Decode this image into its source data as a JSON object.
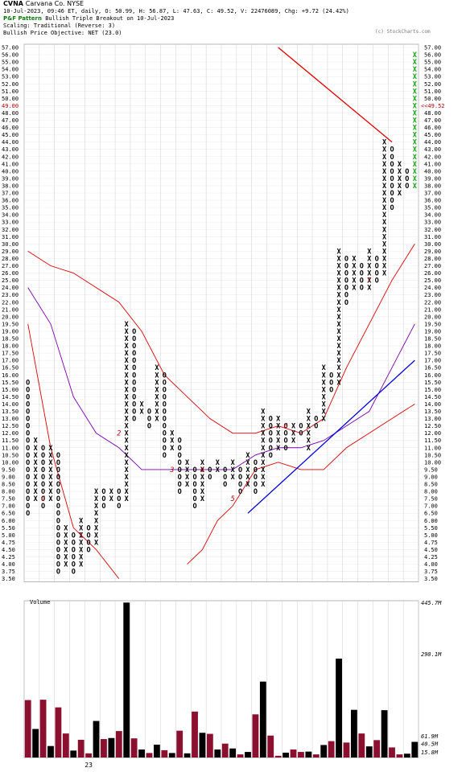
{
  "header": {
    "symbol": "CVNA",
    "company": "Carvana Co.  NYSE",
    "quote_line": "10-Jul-2023, 09:46 ET, daily, O: 50.99, H: 56.87, L: 47.63, C: 49.52, V: 22476089, Chg: +9.72 (24.42%)",
    "pnf_label": "P&F Pattern",
    "pnf_text": "Bullish Triple Breakout on 10-Jul-2023",
    "scaling": "Scaling: Traditional (Reverse: 3)",
    "bullish_objective": "Bullish Price Objective: NET (23.0)",
    "watermark": "(c) StockCharts.com"
  },
  "colors": {
    "x_mark": "#000000",
    "o_mark": "#000000",
    "latest_x": "#10a010",
    "bollinger": "#dd0000",
    "sma": "#7a00b0",
    "bullish_support": "#0000dd",
    "bearish_resistance": "#dd0000",
    "month_label": "#b00000",
    "volume_up": "#8b1030",
    "volume_down": "#000000",
    "current_price": "#b00000"
  },
  "price_axis": {
    "ticks": [
      "57.00",
      "56.00",
      "55.00",
      "54.00",
      "53.00",
      "52.00",
      "51.00",
      "50.00",
      "49.00",
      "48.00",
      "47.00",
      "46.00",
      "45.00",
      "44.00",
      "43.00",
      "42.00",
      "41.00",
      "40.00",
      "39.00",
      "38.00",
      "37.00",
      "36.00",
      "35.00",
      "34.00",
      "33.00",
      "32.00",
      "31.00",
      "30.00",
      "29.00",
      "28.00",
      "27.00",
      "26.00",
      "25.00",
      "24.00",
      "23.00",
      "22.00",
      "21.00",
      "20.00",
      "19.50",
      "19.00",
      "18.50",
      "18.00",
      "17.50",
      "17.00",
      "16.50",
      "16.00",
      "15.50",
      "15.00",
      "14.50",
      "14.00",
      "13.50",
      "13.00",
      "12.50",
      "12.00",
      "11.50",
      "11.00",
      "10.50",
      "10.00",
      "9.50",
      "9.00",
      "8.50",
      "8.00",
      "7.50",
      "7.00",
      "6.50",
      "6.00",
      "5.50",
      "5.00",
      "4.75",
      "4.50",
      "4.25",
      "4.00",
      "3.75",
      "3.50"
    ],
    "current_price_label": "49.00",
    "current_price_marker": "<<49.52"
  },
  "volume_axis": {
    "title": "Volume",
    "ticks": [
      "445.7M",
      "298.1M",
      "61.9M",
      "40.5M",
      "15.8M"
    ]
  },
  "x_axis_label": "23",
  "month_markers": [
    "1",
    "2",
    "3",
    "4",
    "5",
    "6",
    "7",
    "C"
  ],
  "chart_data": {
    "type": "point-and-figure",
    "box_scale": "traditional",
    "reversal": 3,
    "columns": [
      {
        "type": "O",
        "from": "6.50",
        "to": "15.50"
      },
      {
        "type": "X",
        "from": "7.50",
        "to": "11.50"
      },
      {
        "type": "O",
        "from": "7.00",
        "to": "11.00"
      },
      {
        "type": "X",
        "from": "7.50",
        "to": "11.00"
      },
      {
        "type": "O",
        "from": "3.75",
        "to": "10.50"
      },
      {
        "type": "X",
        "from": "4.00",
        "to": "5.50"
      },
      {
        "type": "O",
        "from": "3.75",
        "to": "5.00"
      },
      {
        "type": "X",
        "from": "4.00",
        "to": "6.00"
      },
      {
        "type": "O",
        "from": "4.50",
        "to": "5.50"
      },
      {
        "type": "X",
        "from": "4.75",
        "to": "8.00"
      },
      {
        "type": "O",
        "from": "7.00",
        "to": "8.00"
      },
      {
        "type": "X",
        "from": "7.50",
        "to": "8.00"
      },
      {
        "type": "O",
        "from": "7.00",
        "to": "8.00"
      },
      {
        "type": "X",
        "from": "7.50",
        "to": "19.50"
      },
      {
        "type": "O",
        "from": "13.00",
        "to": "19.00"
      },
      {
        "type": "X",
        "from": "13.50",
        "to": "14.00"
      },
      {
        "type": "O",
        "from": "12.50",
        "to": "13.50"
      },
      {
        "type": "X",
        "from": "13.00",
        "to": "16.50"
      },
      {
        "type": "O",
        "from": "10.50",
        "to": "16.00"
      },
      {
        "type": "X",
        "from": "11.00",
        "to": "12.00"
      },
      {
        "type": "O",
        "from": "8.00",
        "to": "11.50"
      },
      {
        "type": "X",
        "from": "8.50",
        "to": "10.00"
      },
      {
        "type": "O",
        "from": "7.00",
        "to": "9.50"
      },
      {
        "type": "X",
        "from": "7.50",
        "to": "10.00"
      },
      {
        "type": "O",
        "from": "9.00",
        "to": "9.50"
      },
      {
        "type": "X",
        "from": "9.50",
        "to": "10.00"
      },
      {
        "type": "O",
        "from": "8.50",
        "to": "9.50"
      },
      {
        "type": "X",
        "from": "9.00",
        "to": "10.00"
      },
      {
        "type": "O",
        "from": "8.00",
        "to": "9.50"
      },
      {
        "type": "X",
        "from": "8.50",
        "to": "10.50"
      },
      {
        "type": "O",
        "from": "8.00",
        "to": "10.00"
      },
      {
        "type": "X",
        "from": "8.50",
        "to": "13.50"
      },
      {
        "type": "O",
        "from": "10.50",
        "to": "13.00"
      },
      {
        "type": "X",
        "from": "11.00",
        "to": "13.00"
      },
      {
        "type": "O",
        "from": "11.00",
        "to": "12.50"
      },
      {
        "type": "X",
        "from": "11.50",
        "to": "12.50"
      },
      {
        "type": "O",
        "from": "12.00",
        "to": "12.50"
      },
      {
        "type": "X",
        "from": "11.00",
        "to": "13.50"
      },
      {
        "type": "O",
        "from": "12.50",
        "to": "13.00"
      },
      {
        "type": "X",
        "from": "13.00",
        "to": "16.50"
      },
      {
        "type": "O",
        "from": "15.00",
        "to": "16.00"
      },
      {
        "type": "X",
        "from": "15.50",
        "to": "29.00"
      },
      {
        "type": "O",
        "from": "22.00",
        "to": "28.00"
      },
      {
        "type": "X",
        "from": "24.00",
        "to": "28.00"
      },
      {
        "type": "O",
        "from": "24.00",
        "to": "27.00"
      },
      {
        "type": "X",
        "from": "24.00",
        "to": "29.00"
      },
      {
        "type": "O",
        "from": "25.00",
        "to": "28.00"
      },
      {
        "type": "X",
        "from": "26.00",
        "to": "44.00"
      },
      {
        "type": "O",
        "from": "35.00",
        "to": "43.00"
      },
      {
        "type": "X",
        "from": "37.00",
        "to": "41.00"
      },
      {
        "type": "O",
        "from": "38.00",
        "to": "40.00"
      },
      {
        "type": "X",
        "from": "38.00",
        "to": "56.00"
      }
    ],
    "volume": [
      {
        "dir": "up",
        "value": 165
      },
      {
        "dir": "down",
        "value": 82
      },
      {
        "dir": "up",
        "value": 166
      },
      {
        "dir": "down",
        "value": 33
      },
      {
        "dir": "up",
        "value": 144
      },
      {
        "dir": "up",
        "value": 69
      },
      {
        "dir": "down",
        "value": 20
      },
      {
        "dir": "up",
        "value": 51
      },
      {
        "dir": "up",
        "value": 12
      },
      {
        "dir": "down",
        "value": 105
      },
      {
        "dir": "up",
        "value": 53
      },
      {
        "dir": "down",
        "value": 56
      },
      {
        "dir": "up",
        "value": 76
      },
      {
        "dir": "down",
        "value": 445
      },
      {
        "dir": "up",
        "value": 55
      },
      {
        "dir": "down",
        "value": 23
      },
      {
        "dir": "up",
        "value": 13
      },
      {
        "dir": "down",
        "value": 37
      },
      {
        "dir": "up",
        "value": 21
      },
      {
        "dir": "down",
        "value": 13
      },
      {
        "dir": "up",
        "value": 77
      },
      {
        "dir": "down",
        "value": 12
      },
      {
        "dir": "up",
        "value": 132
      },
      {
        "dir": "down",
        "value": 71
      },
      {
        "dir": "up",
        "value": 68
      },
      {
        "dir": "down",
        "value": 23
      },
      {
        "dir": "up",
        "value": 40
      },
      {
        "dir": "down",
        "value": 26
      },
      {
        "dir": "up",
        "value": 9
      },
      {
        "dir": "down",
        "value": 16
      },
      {
        "dir": "up",
        "value": 124
      },
      {
        "dir": "down",
        "value": 218
      },
      {
        "dir": "up",
        "value": 63
      },
      {
        "dir": "up",
        "value": 5
      },
      {
        "dir": "down",
        "value": 14
      },
      {
        "dir": "up",
        "value": 23
      },
      {
        "dir": "up",
        "value": 16
      },
      {
        "dir": "down",
        "value": 17
      },
      {
        "dir": "up",
        "value": 9
      },
      {
        "dir": "down",
        "value": 36
      },
      {
        "dir": "up",
        "value": 47
      },
      {
        "dir": "down",
        "value": 284
      },
      {
        "dir": "up",
        "value": 43
      },
      {
        "dir": "down",
        "value": 137
      },
      {
        "dir": "up",
        "value": 69
      },
      {
        "dir": "down",
        "value": 32
      },
      {
        "dir": "up",
        "value": 50
      },
      {
        "dir": "down",
        "value": 136
      },
      {
        "dir": "up",
        "value": 29
      },
      {
        "dir": "up",
        "value": 9
      },
      {
        "dir": "down",
        "value": 11
      },
      {
        "dir": "down",
        "value": 45
      }
    ],
    "volume_ylim": [
      0,
      445.7
    ],
    "month_markers": [
      {
        "label": "C",
        "col": 2,
        "price": "7.50"
      },
      {
        "label": "1",
        "col": 7,
        "price": "5.00"
      },
      {
        "label": "2",
        "col": 12,
        "price": "12.00"
      },
      {
        "label": "3",
        "col": 19,
        "price": "9.50"
      },
      {
        "label": "4",
        "col": 23,
        "price": "9.50"
      },
      {
        "label": "5",
        "col": 27,
        "price": "7.50"
      },
      {
        "label": "6",
        "col": 34,
        "price": "12.50"
      },
      {
        "label": "7",
        "col": 45,
        "price": "25.00"
      }
    ],
    "overlays": [
      {
        "name": "Bollinger upper",
        "color": "#dd0000",
        "points": [
          [
            0,
            "29.00"
          ],
          [
            3,
            "27.00"
          ],
          [
            6,
            "26.00"
          ],
          [
            9,
            "24.00"
          ],
          [
            12,
            "22.00"
          ],
          [
            15,
            "19.00"
          ],
          [
            18,
            "16.00"
          ],
          [
            21,
            "14.50"
          ],
          [
            24,
            "13.00"
          ],
          [
            27,
            "12.00"
          ],
          [
            30,
            "12.00"
          ],
          [
            33,
            "12.50"
          ],
          [
            36,
            "12.00"
          ],
          [
            39,
            "13.00"
          ],
          [
            42,
            "16.50"
          ],
          [
            45,
            "19.50"
          ],
          [
            48,
            "25.00"
          ],
          [
            51,
            "30.00"
          ]
        ]
      },
      {
        "name": "Bollinger lower",
        "color": "#dd0000",
        "points": [
          [
            0,
            "19.50"
          ],
          [
            3,
            "11.00"
          ],
          [
            6,
            "5.50"
          ],
          [
            9,
            "4.50"
          ],
          [
            12,
            "3.50"
          ]
        ]
      },
      {
        "name": "Bollinger lower 2",
        "color": "#dd0000",
        "points": [
          [
            21,
            "4.00"
          ],
          [
            23,
            "4.50"
          ],
          [
            25,
            "6.00"
          ],
          [
            27,
            "7.00"
          ],
          [
            30,
            "9.50"
          ],
          [
            33,
            "10.00"
          ],
          [
            36,
            "9.50"
          ],
          [
            39,
            "9.50"
          ],
          [
            42,
            "11.00"
          ],
          [
            45,
            "12.00"
          ],
          [
            48,
            "13.00"
          ],
          [
            51,
            "14.00"
          ]
        ]
      },
      {
        "name": "SMA",
        "color": "#7a00b0",
        "points": [
          [
            0,
            "24.00"
          ],
          [
            3,
            "19.50"
          ],
          [
            6,
            "14.50"
          ],
          [
            9,
            "12.00"
          ],
          [
            12,
            "11.00"
          ],
          [
            15,
            "9.50"
          ],
          [
            18,
            "9.50"
          ],
          [
            21,
            "9.50"
          ],
          [
            24,
            "9.50"
          ],
          [
            27,
            "9.50"
          ],
          [
            30,
            "10.50"
          ],
          [
            33,
            "11.00"
          ],
          [
            36,
            "11.00"
          ],
          [
            39,
            "11.50"
          ],
          [
            42,
            "12.50"
          ],
          [
            45,
            "13.50"
          ],
          [
            48,
            "16.50"
          ],
          [
            51,
            "19.50"
          ]
        ]
      }
    ],
    "trendlines": [
      {
        "name": "bullish support",
        "color": "#0000dd",
        "from": [
          29,
          "6.50"
        ],
        "to": [
          51,
          "17.00"
        ]
      },
      {
        "name": "bearish resistance",
        "color": "#dd0000",
        "from": [
          33,
          "57.00"
        ],
        "to": [
          48,
          "44.00"
        ]
      }
    ]
  }
}
